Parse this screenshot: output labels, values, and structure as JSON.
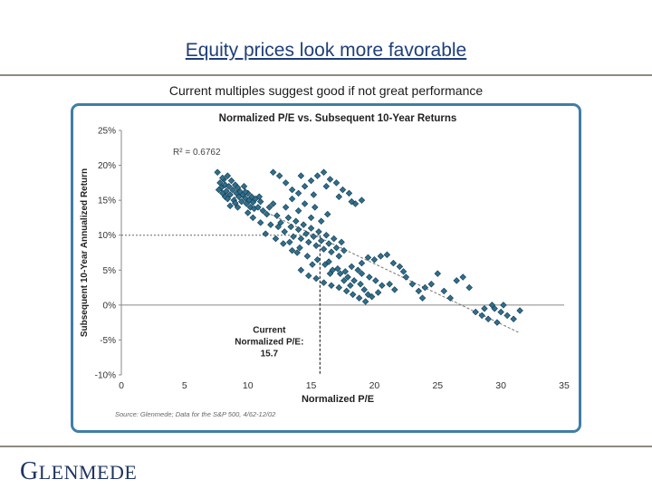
{
  "slide": {
    "title": "Equity prices look more favorable",
    "subtitle": "Current multiples suggest good if not great performance"
  },
  "logo": {
    "text": "GLENMEDE",
    "first": "G",
    "rest": "LENMEDE"
  },
  "colors": {
    "title": "#1f3f7a",
    "frame": "#3f7ea8",
    "marker": "#2f6f8e",
    "marker_edge": "#13384a",
    "rule": "#8d8a80"
  },
  "chart_data": {
    "type": "scatter",
    "title": "Normalized P/E vs. Subsequent 10-Year Returns",
    "xlabel": "Normalized P/E",
    "ylabel": "Subsequent 10-Year Annualized Return",
    "xlim": [
      0,
      35
    ],
    "ylim": [
      -0.1,
      0.25
    ],
    "xticks": [
      "0",
      "5",
      "10",
      "15",
      "20",
      "25",
      "30",
      "35"
    ],
    "yticks": [
      "-10%",
      "-5%",
      "0%",
      "5%",
      "10%",
      "15%",
      "20%",
      "25%"
    ],
    "grid": false,
    "r_squared_label": "R² = 0.6762",
    "trendline": {
      "x": [
        7.6,
        31.5
      ],
      "y": [
        0.166,
        -0.04
      ],
      "style": "dashed"
    },
    "annotation": {
      "lines": [
        "Current",
        "Normalized P/E:",
        "15.7"
      ],
      "x": 15.7,
      "y": 0.1
    },
    "source": "Source: Glenmede; Data for the S&P 500, 4/62-12/02",
    "points": [
      [
        7.6,
        0.19
      ],
      [
        7.8,
        0.175
      ],
      [
        7.9,
        0.168
      ],
      [
        8.0,
        0.16
      ],
      [
        8.1,
        0.18
      ],
      [
        8.2,
        0.172
      ],
      [
        8.3,
        0.163
      ],
      [
        8.4,
        0.185
      ],
      [
        8.5,
        0.17
      ],
      [
        8.6,
        0.158
      ],
      [
        8.7,
        0.178
      ],
      [
        8.8,
        0.165
      ],
      [
        8.9,
        0.15
      ],
      [
        9.0,
        0.172
      ],
      [
        9.1,
        0.16
      ],
      [
        9.2,
        0.168
      ],
      [
        9.3,
        0.155
      ],
      [
        9.4,
        0.162
      ],
      [
        9.5,
        0.148
      ],
      [
        9.6,
        0.158
      ],
      [
        9.7,
        0.17
      ],
      [
        9.8,
        0.153
      ],
      [
        9.9,
        0.145
      ],
      [
        10.0,
        0.16
      ],
      [
        10.1,
        0.15
      ],
      [
        10.2,
        0.14
      ],
      [
        10.3,
        0.155
      ],
      [
        10.4,
        0.147
      ],
      [
        10.5,
        0.138
      ],
      [
        10.6,
        0.152
      ],
      [
        10.8,
        0.14
      ],
      [
        11.0,
        0.148
      ],
      [
        11.2,
        0.135
      ],
      [
        8.2,
        0.155
      ],
      [
        8.6,
        0.142
      ],
      [
        9.0,
        0.146
      ],
      [
        7.7,
        0.165
      ],
      [
        8.0,
        0.182
      ],
      [
        8.4,
        0.152
      ],
      [
        9.2,
        0.14
      ],
      [
        10.0,
        0.132
      ],
      [
        11.5,
        0.13
      ],
      [
        11.8,
        0.115
      ],
      [
        12.0,
        0.145
      ],
      [
        12.3,
        0.128
      ],
      [
        12.6,
        0.118
      ],
      [
        12.9,
        0.105
      ],
      [
        13.2,
        0.125
      ],
      [
        13.4,
        0.112
      ],
      [
        13.6,
        0.098
      ],
      [
        13.8,
        0.12
      ],
      [
        14.0,
        0.108
      ],
      [
        14.2,
        0.095
      ],
      [
        14.4,
        0.115
      ],
      [
        14.6,
        0.102
      ],
      [
        14.8,
        0.09
      ],
      [
        15.0,
        0.11
      ],
      [
        15.2,
        0.098
      ],
      [
        15.4,
        0.085
      ],
      [
        15.6,
        0.105
      ],
      [
        15.8,
        0.092
      ],
      [
        16.0,
        0.08
      ],
      [
        16.2,
        0.1
      ],
      [
        16.4,
        0.088
      ],
      [
        16.6,
        0.076
      ],
      [
        16.8,
        0.095
      ],
      [
        17.0,
        0.082
      ],
      [
        17.2,
        0.07
      ],
      [
        17.4,
        0.09
      ],
      [
        17.6,
        0.078
      ],
      [
        13.0,
        0.14
      ],
      [
        13.5,
        0.152
      ],
      [
        14.0,
        0.135
      ],
      [
        14.5,
        0.145
      ],
      [
        15.0,
        0.125
      ],
      [
        15.3,
        0.14
      ],
      [
        15.8,
        0.12
      ],
      [
        16.3,
        0.13
      ],
      [
        13.3,
        0.09
      ],
      [
        14.1,
        0.082
      ],
      [
        14.7,
        0.07
      ],
      [
        15.5,
        0.065
      ],
      [
        16.1,
        0.058
      ],
      [
        16.7,
        0.05
      ],
      [
        17.3,
        0.045
      ],
      [
        17.9,
        0.04
      ],
      [
        18.4,
        0.035
      ],
      [
        18.9,
        0.03
      ],
      [
        19.2,
        0.022
      ],
      [
        19.5,
        0.015
      ],
      [
        14.2,
        0.05
      ],
      [
        14.8,
        0.042
      ],
      [
        15.4,
        0.038
      ],
      [
        16.0,
        0.032
      ],
      [
        16.6,
        0.028
      ],
      [
        17.2,
        0.025
      ],
      [
        17.8,
        0.02
      ],
      [
        18.3,
        0.015
      ],
      [
        18.8,
        0.01
      ],
      [
        19.3,
        0.005
      ],
      [
        16.5,
        0.045
      ],
      [
        17.1,
        0.052
      ],
      [
        17.7,
        0.048
      ],
      [
        18.2,
        0.055
      ],
      [
        18.7,
        0.05
      ],
      [
        19.0,
        0.045
      ],
      [
        19.6,
        0.04
      ],
      [
        20.1,
        0.035
      ],
      [
        20.6,
        0.028
      ],
      [
        21.2,
        0.03
      ],
      [
        19.0,
        0.06
      ],
      [
        19.5,
        0.068
      ],
      [
        20.0,
        0.065
      ],
      [
        20.5,
        0.07
      ],
      [
        21.0,
        0.072
      ],
      [
        21.5,
        0.06
      ],
      [
        22.0,
        0.055
      ],
      [
        22.5,
        0.04
      ],
      [
        23.0,
        0.03
      ],
      [
        23.5,
        0.02
      ],
      [
        12.0,
        0.19
      ],
      [
        12.5,
        0.185
      ],
      [
        13.0,
        0.175
      ],
      [
        13.5,
        0.165
      ],
      [
        14.0,
        0.16
      ],
      [
        14.5,
        0.17
      ],
      [
        15.0,
        0.178
      ],
      [
        15.5,
        0.185
      ],
      [
        16.0,
        0.19
      ],
      [
        16.5,
        0.18
      ],
      [
        17.0,
        0.175
      ],
      [
        17.5,
        0.165
      ],
      [
        18.0,
        0.16
      ],
      [
        18.5,
        0.145
      ],
      [
        19.0,
        0.15
      ],
      [
        15.2,
        0.158
      ],
      [
        16.2,
        0.17
      ],
      [
        17.2,
        0.155
      ],
      [
        18.2,
        0.148
      ],
      [
        14.2,
        0.185
      ],
      [
        24.0,
        0.025
      ],
      [
        24.5,
        0.03
      ],
      [
        25.0,
        0.045
      ],
      [
        25.5,
        0.02
      ],
      [
        26.0,
        0.01
      ],
      [
        26.5,
        0.035
      ],
      [
        27.0,
        0.04
      ],
      [
        27.5,
        0.025
      ],
      [
        28.0,
        -0.01
      ],
      [
        28.5,
        -0.015
      ],
      [
        29.0,
        -0.02
      ],
      [
        29.5,
        -0.005
      ],
      [
        30.0,
        -0.01
      ],
      [
        30.5,
        -0.015
      ],
      [
        31.0,
        -0.02
      ],
      [
        31.5,
        -0.008
      ],
      [
        30.2,
        0.0
      ],
      [
        29.7,
        -0.025
      ],
      [
        28.7,
        -0.005
      ],
      [
        29.3,
        0.0
      ],
      [
        13.9,
        0.075
      ],
      [
        15.1,
        0.058
      ],
      [
        16.4,
        0.062
      ],
      [
        17.6,
        0.035
      ],
      [
        18.1,
        0.028
      ],
      [
        19.8,
        0.012
      ],
      [
        20.3,
        0.018
      ],
      [
        21.6,
        0.022
      ],
      [
        22.3,
        0.048
      ],
      [
        23.8,
        0.01
      ],
      [
        10.4,
        0.125
      ],
      [
        11.0,
        0.118
      ],
      [
        11.4,
        0.102
      ],
      [
        12.2,
        0.095
      ],
      [
        12.8,
        0.088
      ],
      [
        13.5,
        0.078
      ],
      [
        11.7,
        0.14
      ],
      [
        12.4,
        0.112
      ],
      [
        10.9,
        0.155
      ],
      [
        9.8,
        0.162
      ]
    ]
  }
}
